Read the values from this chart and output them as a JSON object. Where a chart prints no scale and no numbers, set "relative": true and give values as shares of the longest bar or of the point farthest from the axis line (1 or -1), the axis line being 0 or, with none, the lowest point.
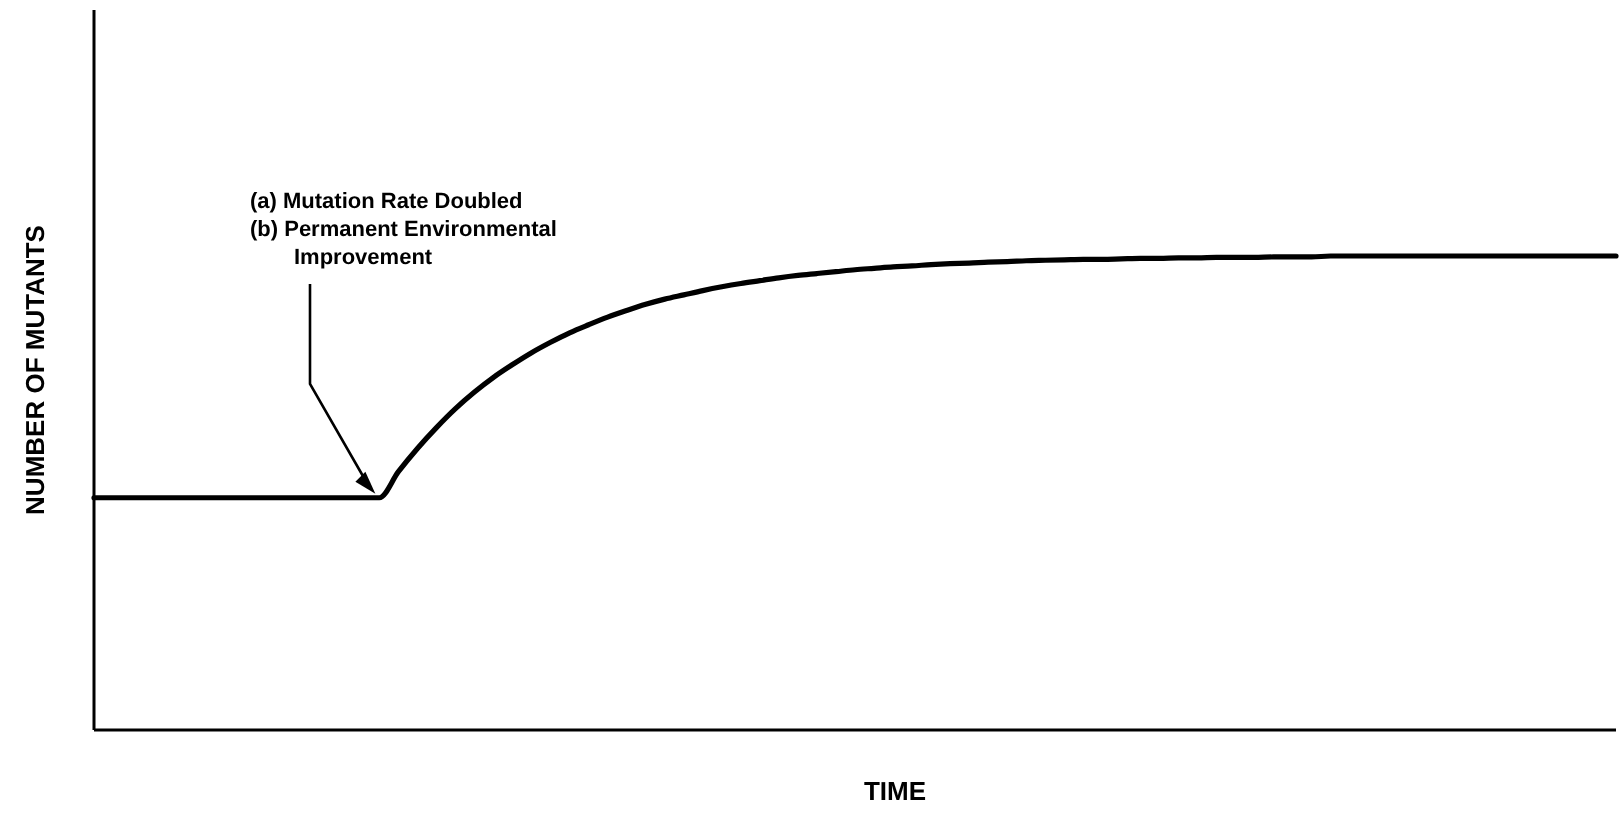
{
  "chart_data": {
    "type": "line",
    "relative": true,
    "xlabel": "TIME",
    "ylabel": "NUMBER OF MUTANTS",
    "annotations": [
      "(a) Mutation Rate Doubled",
      "(b) Permanent Environmental Improvement"
    ],
    "categories": [
      null,
      null,
      null,
      null,
      null,
      null,
      null,
      null,
      null,
      null,
      null,
      null,
      null,
      null,
      null,
      null,
      null,
      null,
      null,
      null,
      null,
      null,
      null,
      null,
      null,
      null,
      null,
      null,
      null,
      null,
      null,
      null,
      null,
      null,
      null,
      null,
      null,
      null,
      null,
      null,
      null,
      null,
      null,
      null,
      null,
      null,
      null,
      null,
      null,
      null,
      null,
      null,
      null,
      null,
      null,
      null,
      null,
      null,
      null,
      null,
      null,
      null,
      null,
      null,
      null,
      null,
      null,
      null,
      null,
      null,
      null,
      null,
      null,
      null,
      null,
      null,
      null,
      null,
      null,
      null,
      null
    ],
    "series": [
      {
        "color": "#000000",
        "values": [
          0.49,
          0.49,
          0.49,
          0.49,
          0.49,
          0.49,
          0.49,
          0.49,
          0.49,
          0.49,
          0.49,
          0.49,
          0.49,
          0.49,
          0.49,
          0.49,
          0.545,
          0.594,
          0.638,
          0.678,
          0.713,
          0.744,
          0.771,
          0.796,
          0.818,
          0.838,
          0.855,
          0.871,
          0.885,
          0.898,
          0.909,
          0.918,
          0.927,
          0.935,
          0.942,
          0.948,
          0.954,
          0.959,
          0.963,
          0.967,
          0.971,
          0.974,
          0.977,
          0.979,
          0.982,
          0.984,
          0.985,
          0.987,
          0.988,
          0.99,
          0.991,
          0.992,
          0.993,
          0.993,
          0.994,
          0.995,
          0.995,
          0.996,
          0.996,
          0.997,
          0.997,
          0.997,
          0.998,
          0.998,
          0.998,
          1,
          1,
          1,
          1,
          1,
          1,
          1,
          1,
          1,
          1,
          1,
          1,
          1,
          1,
          1,
          1
        ]
      }
    ],
    "marker": "none",
    "line_style": "solid",
    "grid": false,
    "legend": false
  }
}
